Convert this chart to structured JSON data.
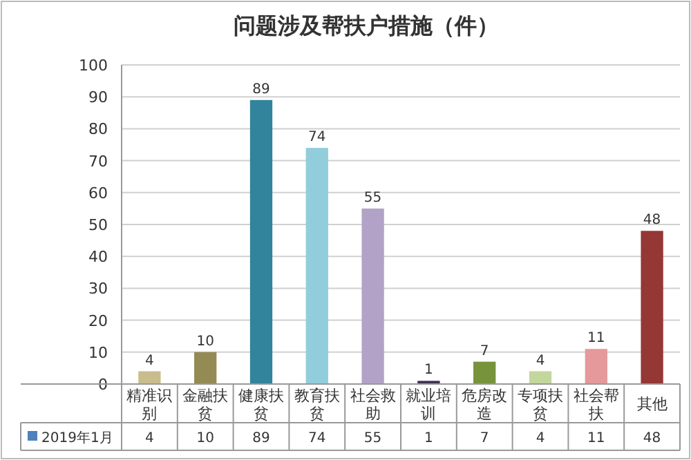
{
  "chart_data": {
    "type": "bar",
    "title": "问题涉及帮扶户措施（件）",
    "categories": [
      "精准识别",
      "金融扶贫",
      "健康扶贫",
      "教育扶贫",
      "社会救助",
      "就业培训",
      "危房改造",
      "专项扶贫",
      "社会帮扶",
      "其他"
    ],
    "series": [
      {
        "name": "2019年1月",
        "color": "#4f81bd",
        "colors": [
          "#c9bd8e",
          "#948a54",
          "#31849b",
          "#92cddc",
          "#b3a2c7",
          "#403152",
          "#77933c",
          "#c3d69b",
          "#e6999a",
          "#953735"
        ],
        "values": [
          4,
          10,
          89,
          74,
          55,
          1,
          7,
          4,
          11,
          48
        ],
        "value_labels": [
          "4",
          "10",
          "89",
          "74",
          "55",
          "1",
          "7",
          "4",
          "11",
          "48"
        ]
      }
    ],
    "ylim": [
      0,
      100
    ],
    "yticks": [
      0,
      10,
      20,
      30,
      40,
      50,
      60,
      70,
      80,
      90,
      100
    ],
    "grid": "y",
    "legend": "bottom",
    "data_labels": true
  }
}
